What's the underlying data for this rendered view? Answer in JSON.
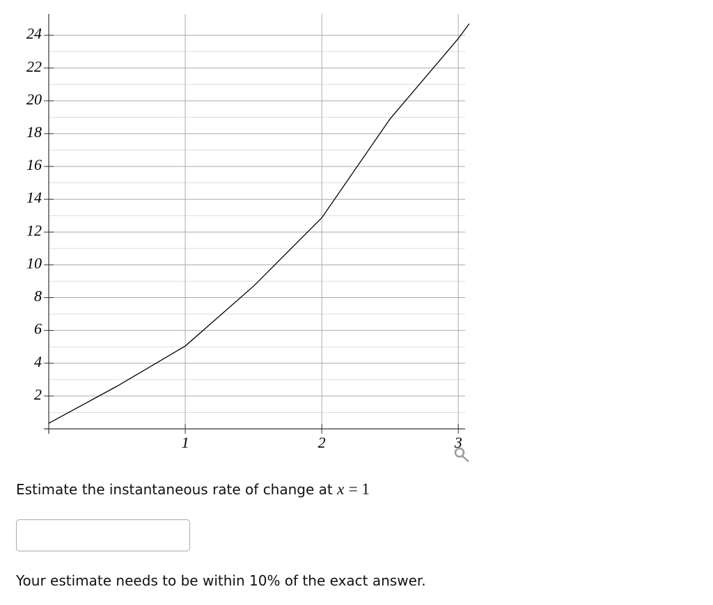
{
  "chart_data": {
    "type": "line",
    "x": [
      0,
      0.5,
      1,
      1.5,
      2,
      2.5,
      3,
      3.08
    ],
    "series": [
      {
        "color": "#000000",
        "values": [
          0.34,
          2.6,
          5.05,
          8.7,
          12.87,
          18.9,
          23.8,
          24.7
        ]
      }
    ],
    "xlim": [
      0,
      3.05
    ],
    "ylim": [
      0,
      25.3
    ],
    "xticks": [
      1,
      2,
      3
    ],
    "yticks": [
      2,
      4,
      6,
      8,
      10,
      12,
      14,
      16,
      18,
      20,
      22,
      24
    ],
    "grid": true
  },
  "question": {
    "prompt": "Estimate the instantaneous rate of change at",
    "math_variable": "x",
    "math_relation": "= 1",
    "note": "Your estimate needs to be within 10% of the exact answer."
  }
}
